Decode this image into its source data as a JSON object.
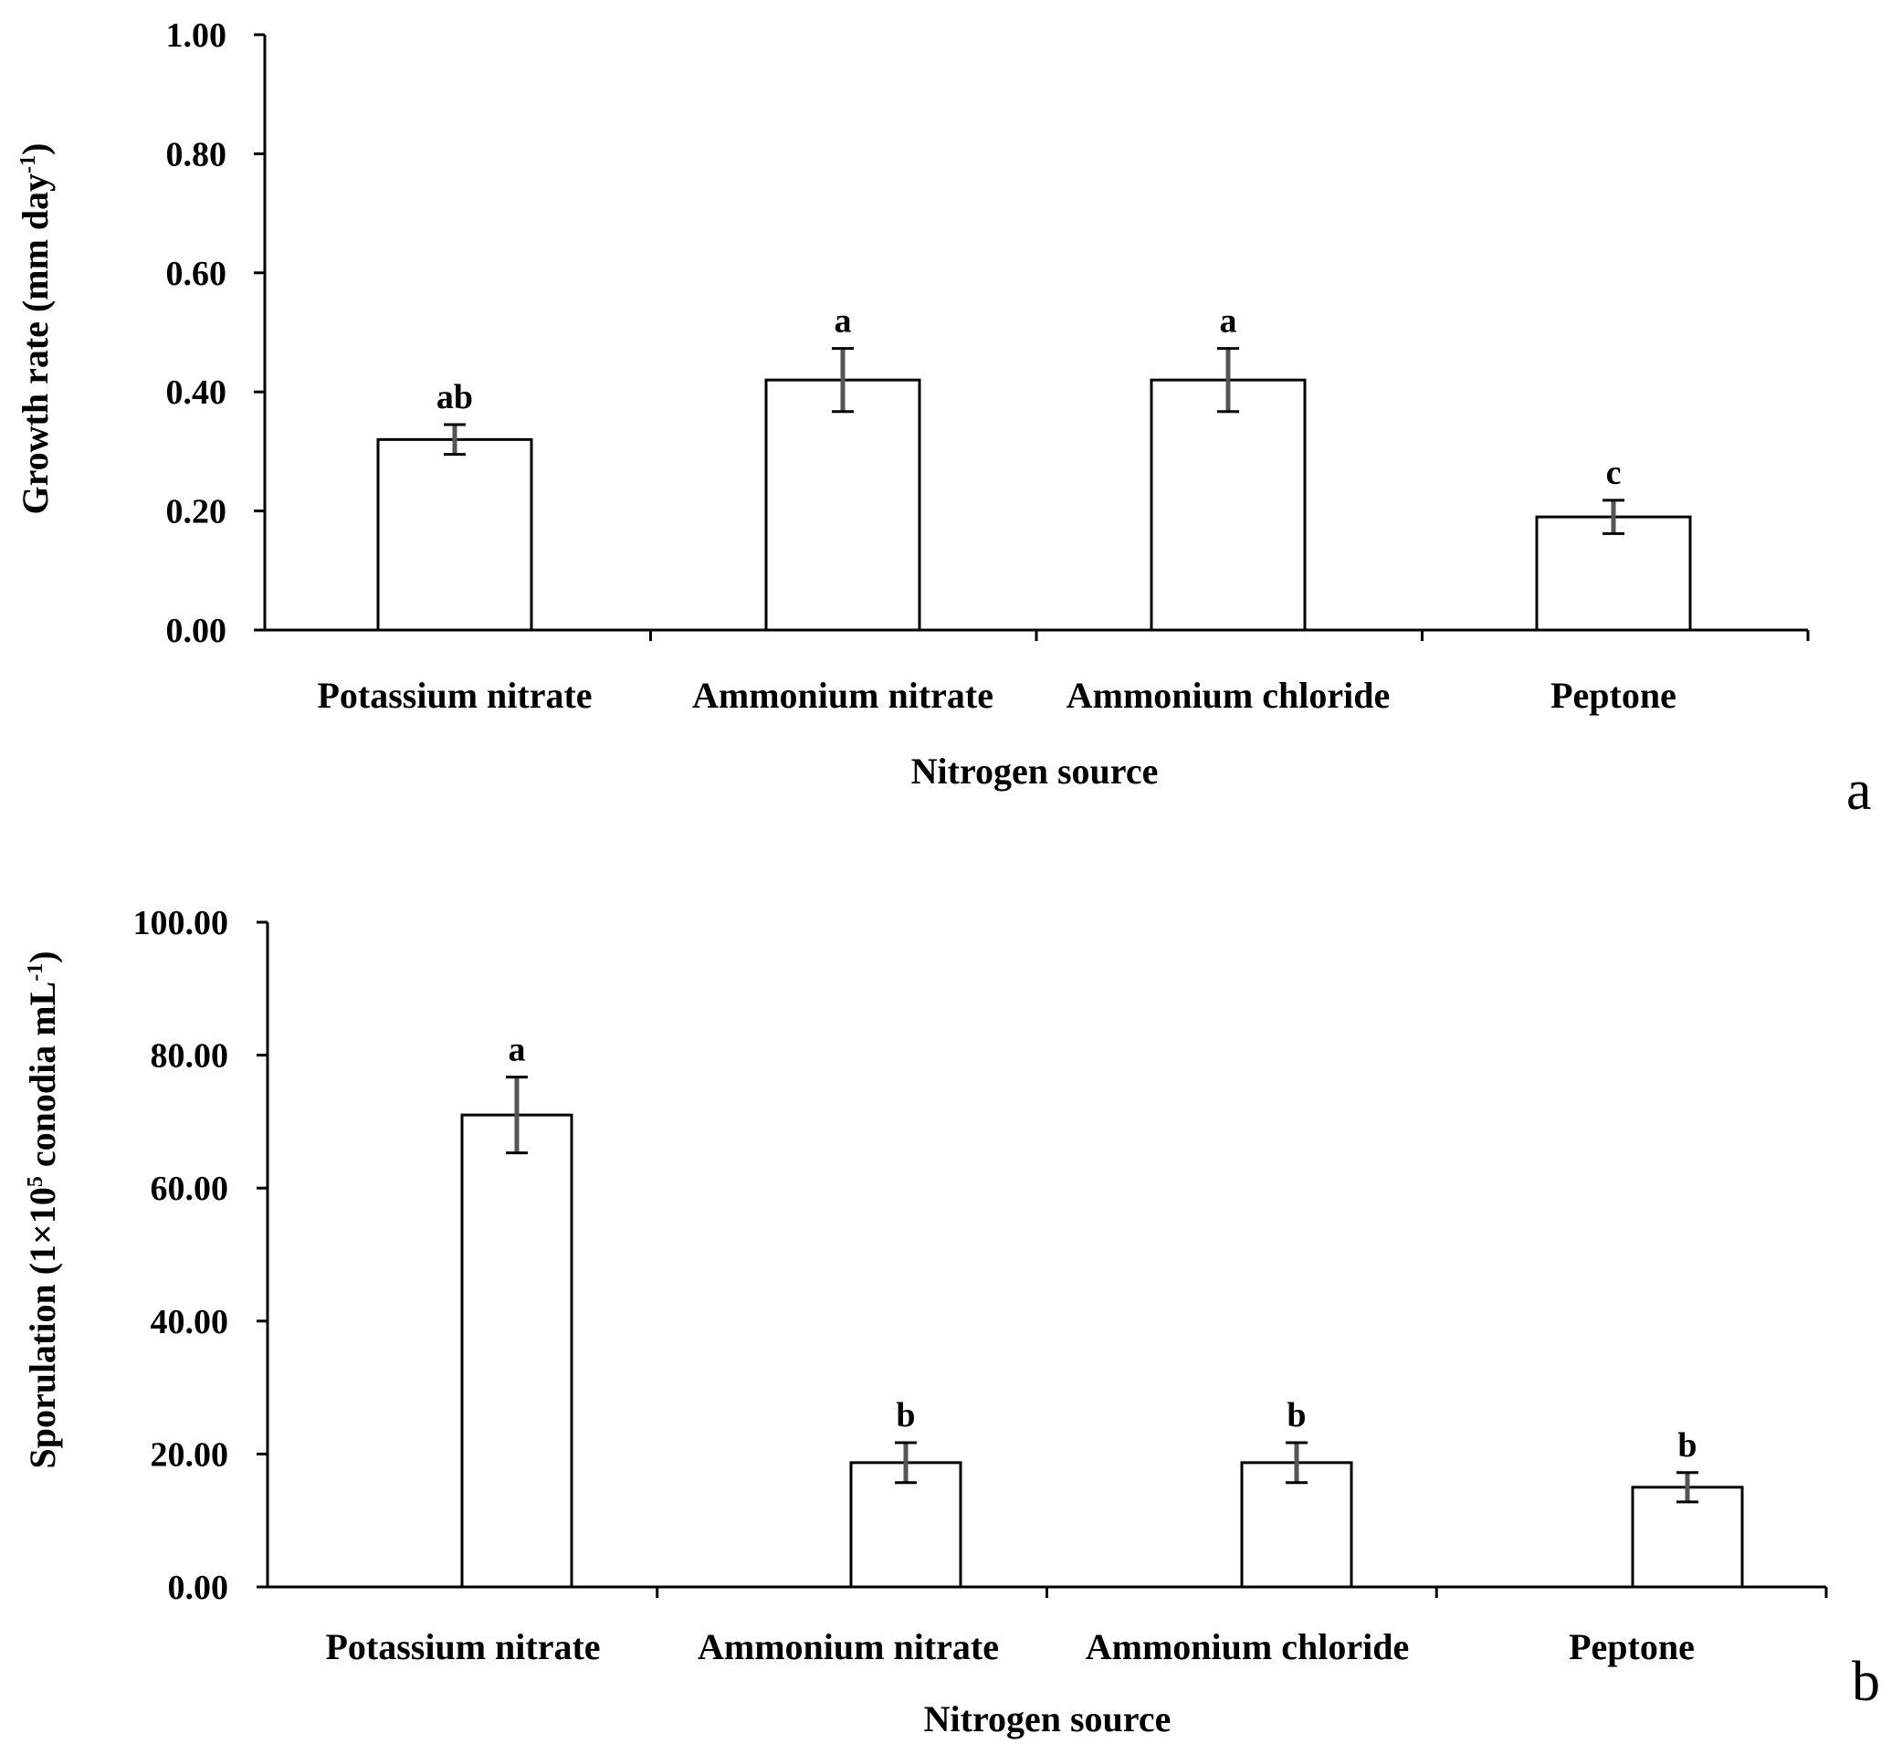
{
  "chart_data": [
    {
      "type": "bar",
      "panel_label": "a",
      "categories": [
        "Potassium nitrate",
        "Ammonium nitrate",
        "Ammonium chloride",
        "Peptone"
      ],
      "values": [
        0.32,
        0.42,
        0.42,
        0.19
      ],
      "errors": [
        0.025,
        0.053,
        0.053,
        0.028
      ],
      "significance": [
        "ab",
        "a",
        "a",
        "c"
      ],
      "xlabel": "Nitrogen source",
      "ylabel": "Growth rate (mm day",
      "ylabel_sup": "-1",
      "ylabel_close": ")",
      "ylim": [
        0,
        1.0
      ],
      "yticks": [
        "0.00",
        "0.20",
        "0.40",
        "0.60",
        "0.80",
        "1.00"
      ],
      "grid": false,
      "colors": {
        "bar_fill": "#ffffff",
        "bar_stroke": "#000000",
        "error_bar": "#555555"
      }
    },
    {
      "type": "bar",
      "panel_label": "b",
      "categories": [
        "Potassium nitrate",
        "Ammonium nitrate",
        "Ammonium chloride",
        "Peptone"
      ],
      "values": [
        71.0,
        18.7,
        18.7,
        15.0
      ],
      "errors": [
        5.7,
        3.0,
        3.0,
        2.2
      ],
      "significance": [
        "a",
        "b",
        "b",
        "b"
      ],
      "xlabel": "Nitrogen source",
      "ylabel": "Sporulation (1×10",
      "ylabel_sup": "5",
      "ylabel_close": " conodia mL",
      "ylabel_sup2": "-1",
      "ylabel_end": ")",
      "ylim": [
        0,
        100.0
      ],
      "yticks": [
        "0.00",
        "20.00",
        "40.00",
        "60.00",
        "80.00",
        "100.00"
      ],
      "grid": false,
      "colors": {
        "bar_fill": "#ffffff",
        "bar_stroke": "#000000",
        "error_bar": "#555555"
      }
    }
  ]
}
